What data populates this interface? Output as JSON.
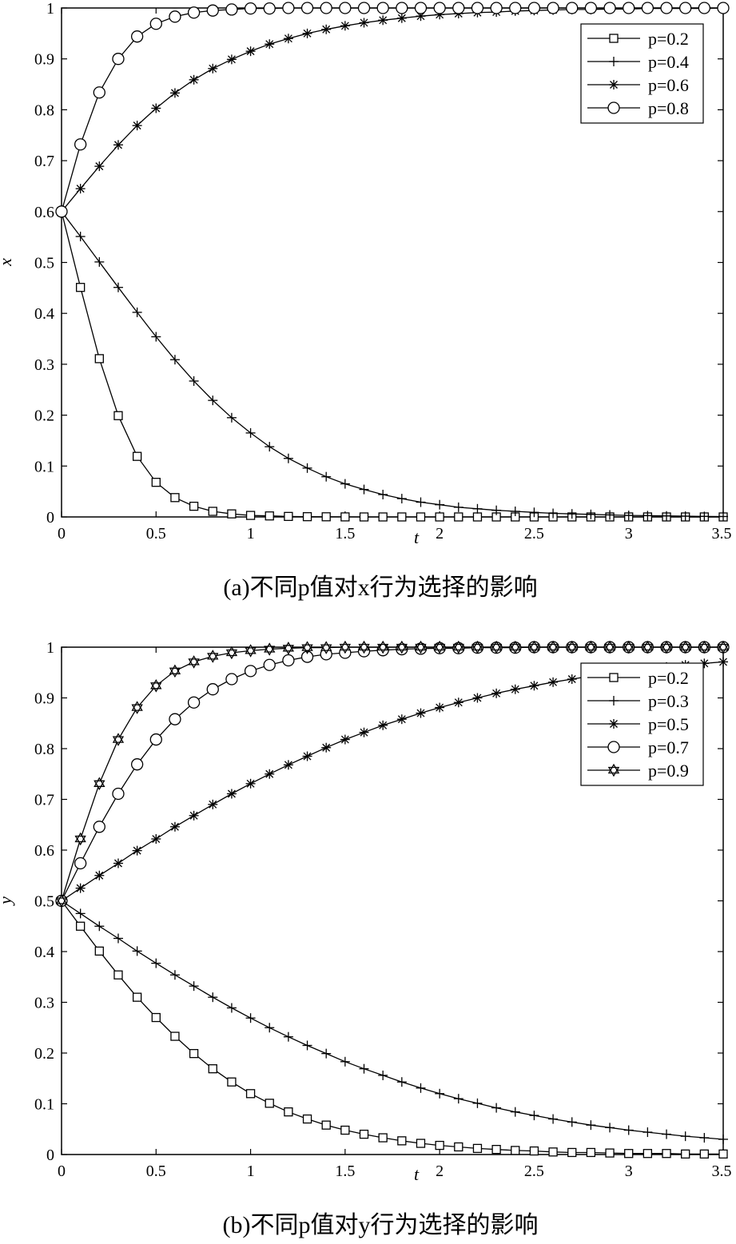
{
  "chart_data": [
    {
      "type": "line",
      "caption": "(a)不同p值对x行为选择的影响",
      "xlabel": "t",
      "ylabel": "x",
      "xlim": [
        0,
        3.5
      ],
      "ylim": [
        0,
        1
      ],
      "xticks": [
        "0",
        "0.5",
        "1",
        "1.5",
        "2",
        "2.5",
        "3",
        "3.5"
      ],
      "yticks": [
        "0",
        "0.1",
        "0.2",
        "0.3",
        "0.4",
        "0.5",
        "0.6",
        "0.7",
        "0.8",
        "0.9",
        "1"
      ],
      "legend_position": "top-right",
      "x": [
        0,
        0.1,
        0.2,
        0.3,
        0.4,
        0.5,
        0.6,
        0.7,
        0.8,
        0.9,
        1.0,
        1.1,
        1.2,
        1.3,
        1.4,
        1.5,
        1.6,
        1.7,
        1.8,
        1.9,
        2.0,
        2.1,
        2.2,
        2.3,
        2.4,
        2.5,
        2.6,
        2.7,
        2.8,
        2.9,
        3.0,
        3.1,
        3.2,
        3.3,
        3.4,
        3.5
      ],
      "series": [
        {
          "name": "p=0.2",
          "marker": "square",
          "values": [
            0.6,
            0.451,
            0.311,
            0.199,
            0.119,
            0.068,
            0.038,
            0.021,
            0.011,
            0.006,
            0.003,
            0.002,
            0.001,
            0.0005,
            0.0003,
            0.0001,
            0,
            0,
            0,
            0,
            0,
            0,
            0,
            0,
            0,
            0,
            0,
            0,
            0,
            0,
            0,
            0,
            0,
            0,
            0,
            0
          ]
        },
        {
          "name": "p=0.4",
          "marker": "plus",
          "values": [
            0.6,
            0.551,
            0.501,
            0.451,
            0.402,
            0.354,
            0.309,
            0.267,
            0.229,
            0.195,
            0.165,
            0.138,
            0.115,
            0.096,
            0.079,
            0.065,
            0.054,
            0.044,
            0.036,
            0.029,
            0.024,
            0.019,
            0.016,
            0.013,
            0.011,
            0.009,
            0.007,
            0.006,
            0.005,
            0.004,
            0.003,
            0.0025,
            0.002,
            0.0015,
            0.001,
            0.0008
          ]
        },
        {
          "name": "p=0.6",
          "marker": "asterisk",
          "values": [
            0.6,
            0.645,
            0.689,
            0.731,
            0.769,
            0.803,
            0.833,
            0.859,
            0.881,
            0.899,
            0.915,
            0.929,
            0.94,
            0.95,
            0.958,
            0.965,
            0.971,
            0.976,
            0.98,
            0.984,
            0.987,
            0.989,
            0.991,
            0.992,
            0.994,
            0.995,
            0.996,
            0.997,
            0.997,
            0.998,
            0.998,
            0.999,
            0.999,
            0.999,
            0.999,
            1.0
          ]
        },
        {
          "name": "p=0.8",
          "marker": "circle",
          "values": [
            0.6,
            0.732,
            0.834,
            0.9,
            0.944,
            0.969,
            0.983,
            0.991,
            0.995,
            0.997,
            0.999,
            0.999,
            1.0,
            1.0,
            1.0,
            1.0,
            1.0,
            1.0,
            1.0,
            1.0,
            1.0,
            1.0,
            1.0,
            1.0,
            1.0,
            1.0,
            1.0,
            1.0,
            1.0,
            1.0,
            1.0,
            1.0,
            1.0,
            1.0,
            1.0,
            1.0
          ]
        }
      ]
    },
    {
      "type": "line",
      "caption": "(b)不同p值对y行为选择的影响",
      "xlabel": "t",
      "ylabel": "y",
      "xlim": [
        0,
        3.5
      ],
      "ylim": [
        0,
        1
      ],
      "xticks": [
        "0",
        "0.5",
        "1",
        "1.5",
        "2",
        "2.5",
        "3",
        "3.5"
      ],
      "yticks": [
        "0",
        "0.1",
        "0.2",
        "0.3",
        "0.4",
        "0.5",
        "0.6",
        "0.7",
        "0.8",
        "0.9",
        "1"
      ],
      "legend_position": "top-right",
      "x": [
        0,
        0.1,
        0.2,
        0.3,
        0.4,
        0.5,
        0.6,
        0.7,
        0.8,
        0.9,
        1.0,
        1.1,
        1.2,
        1.3,
        1.4,
        1.5,
        1.6,
        1.7,
        1.8,
        1.9,
        2.0,
        2.1,
        2.2,
        2.3,
        2.4,
        2.5,
        2.6,
        2.7,
        2.8,
        2.9,
        3.0,
        3.1,
        3.2,
        3.3,
        3.4,
        3.5
      ],
      "series": [
        {
          "name": "p=0.2",
          "marker": "square",
          "values": [
            0.5,
            0.45,
            0.401,
            0.354,
            0.31,
            0.27,
            0.233,
            0.199,
            0.169,
            0.143,
            0.12,
            0.101,
            0.084,
            0.07,
            0.058,
            0.048,
            0.04,
            0.033,
            0.027,
            0.022,
            0.018,
            0.015,
            0.012,
            0.01,
            0.008,
            0.007,
            0.005,
            0.004,
            0.004,
            0.003,
            0.002,
            0.002,
            0.002,
            0.001,
            0.001,
            0.001
          ]
        },
        {
          "name": "p=0.3",
          "marker": "plus",
          "values": [
            0.5,
            0.475,
            0.45,
            0.426,
            0.401,
            0.377,
            0.354,
            0.332,
            0.31,
            0.289,
            0.269,
            0.25,
            0.232,
            0.215,
            0.199,
            0.183,
            0.169,
            0.156,
            0.143,
            0.131,
            0.12,
            0.11,
            0.101,
            0.092,
            0.084,
            0.077,
            0.07,
            0.064,
            0.058,
            0.053,
            0.048,
            0.044,
            0.04,
            0.036,
            0.033,
            0.03
          ]
        },
        {
          "name": "p=0.5",
          "marker": "asterisk",
          "values": [
            0.5,
            0.525,
            0.55,
            0.574,
            0.599,
            0.622,
            0.646,
            0.668,
            0.69,
            0.711,
            0.731,
            0.75,
            0.768,
            0.785,
            0.802,
            0.818,
            0.832,
            0.846,
            0.858,
            0.87,
            0.881,
            0.891,
            0.9,
            0.909,
            0.917,
            0.924,
            0.931,
            0.937,
            0.943,
            0.948,
            0.953,
            0.957,
            0.961,
            0.965,
            0.968,
            0.971
          ]
        },
        {
          "name": "p=0.7",
          "marker": "circle",
          "values": [
            0.5,
            0.574,
            0.646,
            0.711,
            0.769,
            0.818,
            0.858,
            0.891,
            0.917,
            0.937,
            0.953,
            0.965,
            0.974,
            0.981,
            0.986,
            0.989,
            0.992,
            0.994,
            0.996,
            0.997,
            0.998,
            0.998,
            0.999,
            0.999,
            0.999,
            1.0,
            1.0,
            1.0,
            1.0,
            1.0,
            1.0,
            1.0,
            1.0,
            1.0,
            1.0,
            1.0
          ]
        },
        {
          "name": "p=0.9",
          "marker": "star",
          "values": [
            0.5,
            0.622,
            0.731,
            0.818,
            0.881,
            0.924,
            0.953,
            0.971,
            0.982,
            0.989,
            0.993,
            0.996,
            0.998,
            0.999,
            0.999,
            1.0,
            1.0,
            1.0,
            1.0,
            1.0,
            1.0,
            1.0,
            1.0,
            1.0,
            1.0,
            1.0,
            1.0,
            1.0,
            1.0,
            1.0,
            1.0,
            1.0,
            1.0,
            1.0,
            1.0,
            1.0
          ]
        }
      ]
    }
  ]
}
